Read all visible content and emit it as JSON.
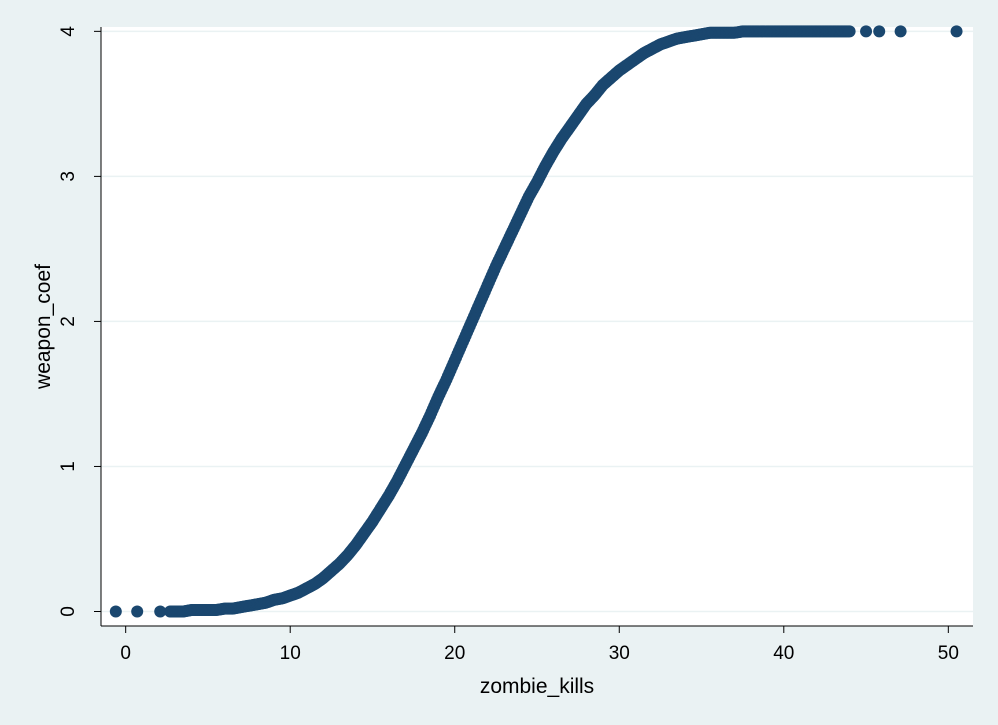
{
  "chart_data": {
    "type": "scatter",
    "title": "",
    "xlabel": "zombie_kills",
    "ylabel": "weapon_coef",
    "xlim": [
      -1.5,
      51.5
    ],
    "ylim": [
      -0.1,
      4.03
    ],
    "x_ticks": [
      0,
      10,
      20,
      30,
      40,
      50
    ],
    "y_ticks": [
      0,
      1,
      2,
      3,
      4
    ],
    "grid": "horizontal",
    "legend": "none",
    "marker_color": "#1a476f",
    "background_outer": "#eaf2f3",
    "plot_background": "#ffffff",
    "gridline_color": "#eaf2f3",
    "series": [
      {
        "x": [
          -0.6,
          0.7,
          2.1,
          2.7,
          3.1,
          3.5,
          4.0,
          4.5,
          5.0,
          5.5,
          6.0,
          6.5,
          7.0,
          7.5,
          8.0,
          8.5,
          9.0,
          9.5,
          10.0,
          10.5,
          11.0,
          11.5,
          12.0,
          12.5,
          13.0,
          13.5,
          14.0,
          14.5,
          15.0,
          15.5,
          16.0,
          16.5,
          17.0,
          17.5,
          18.0,
          18.5,
          19.0,
          19.5,
          20.0,
          20.5,
          21.0,
          21.5,
          22.0,
          22.5,
          23.0,
          23.5,
          24.0,
          24.5,
          25.0,
          25.5,
          26.0,
          26.5,
          27.0,
          27.5,
          28.0,
          28.5,
          29.0,
          29.5,
          30.0,
          30.5,
          31.0,
          31.5,
          32.0,
          32.5,
          33.0,
          33.5,
          34.0,
          34.5,
          35.0,
          35.5,
          36.0,
          36.5,
          37.0,
          37.5,
          38.0,
          38.5,
          39.0,
          39.5,
          40.0,
          40.5,
          41.0,
          41.5,
          42.0,
          42.5,
          43.0,
          43.5,
          44.0,
          45.0,
          45.8,
          47.1,
          50.5
        ],
        "y": [
          0.0,
          0.0,
          0.0,
          0.0,
          0.0,
          0.0,
          0.01,
          0.01,
          0.01,
          0.01,
          0.02,
          0.02,
          0.03,
          0.04,
          0.05,
          0.06,
          0.08,
          0.09,
          0.11,
          0.13,
          0.16,
          0.19,
          0.23,
          0.28,
          0.33,
          0.39,
          0.46,
          0.54,
          0.62,
          0.71,
          0.8,
          0.9,
          1.01,
          1.12,
          1.23,
          1.35,
          1.48,
          1.6,
          1.73,
          1.86,
          1.99,
          2.12,
          2.25,
          2.38,
          2.5,
          2.62,
          2.74,
          2.86,
          2.96,
          3.07,
          3.17,
          3.26,
          3.34,
          3.42,
          3.5,
          3.56,
          3.63,
          3.68,
          3.73,
          3.77,
          3.81,
          3.85,
          3.88,
          3.91,
          3.93,
          3.95,
          3.96,
          3.97,
          3.98,
          3.99,
          3.99,
          3.99,
          3.99,
          4.0,
          4.0,
          4.0,
          4.0,
          4.0,
          4.0,
          4.0,
          4.0,
          4.0,
          4.0,
          4.0,
          4.0,
          4.0,
          4.0,
          4.0,
          4.0,
          4.0,
          4.0
        ]
      }
    ]
  }
}
